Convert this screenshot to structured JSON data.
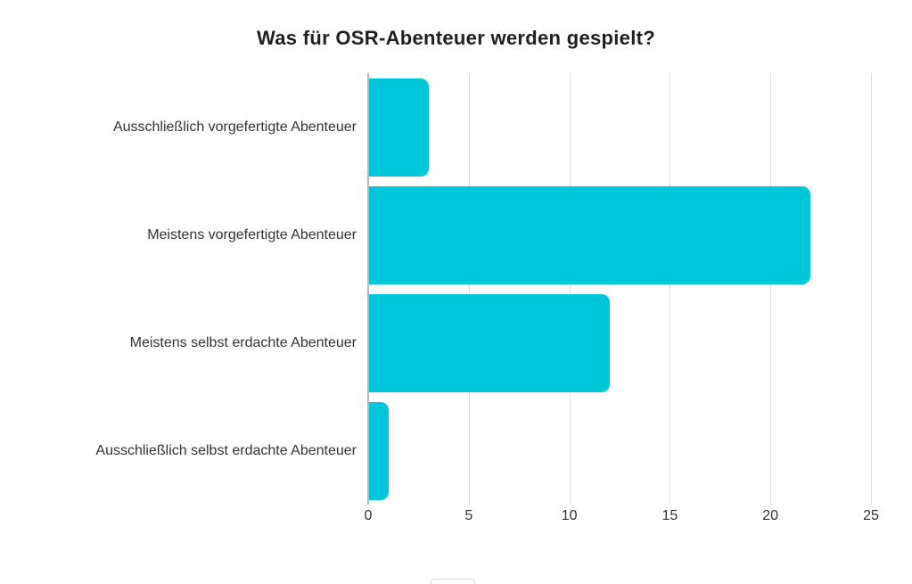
{
  "chart_data": {
    "type": "bar",
    "orientation": "horizontal",
    "title": "Was für OSR-Abenteuer werden gespielt?",
    "categories": [
      "Ausschließlich vorgefertigte Abenteuer",
      "Meistens vorgefertigte Abenteuer",
      "Meistens selbst erdachte Abenteuer",
      "Ausschließlich selbst erdachte Abenteuer"
    ],
    "values": [
      3,
      22,
      12,
      1
    ],
    "xlabel": "",
    "ylabel": "",
    "xlim": [
      0,
      25
    ],
    "x_ticks": [
      0,
      5,
      10,
      15,
      20,
      25
    ],
    "bar_color": "#00c6da",
    "gridline_color": "#dcdcdc",
    "axis_color": "#b9b9b9",
    "text_color": "#333333",
    "title_color": "#1f1f1f",
    "grid": true,
    "legend": "none"
  }
}
